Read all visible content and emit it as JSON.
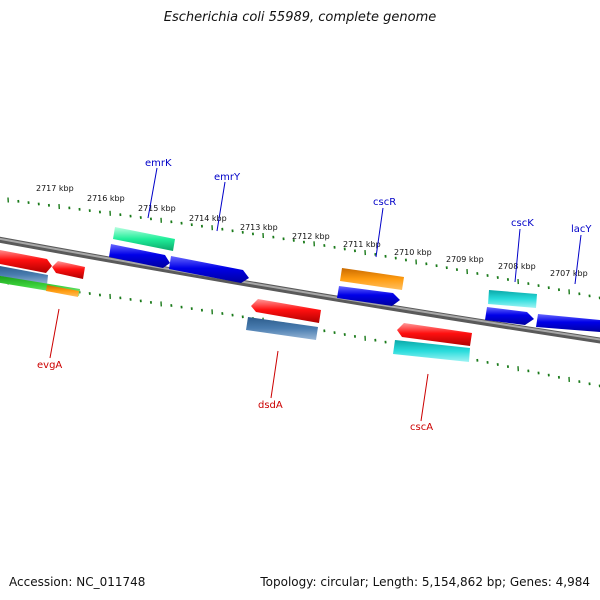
{
  "title": "Escherichia coli 55989, complete genome",
  "footer": {
    "accession": "Accession: NC_011748",
    "topology": "Topology: circular; Length: 5,154,862 bp; Genes: 4,984"
  },
  "colors": {
    "tick": "#1a7a1a",
    "backbone": "#7a7a7a",
    "label_upper": "#0000c8",
    "label_lower": "#cc0000"
  },
  "scale_labels": [
    "2717 kbp",
    "2716 kbp",
    "2715 kbp",
    "2714 kbp",
    "2713 kbp",
    "2712 kbp",
    "2711 kbp",
    "2710 kbp",
    "2709 kbp",
    "2708 kbp",
    "2707 kbp"
  ],
  "gene_labels_upper": [
    "emrK",
    "emrY",
    "cscR",
    "cscK",
    "lacY"
  ],
  "gene_labels_lower": [
    "evgA",
    "dsdA",
    "cscA"
  ]
}
